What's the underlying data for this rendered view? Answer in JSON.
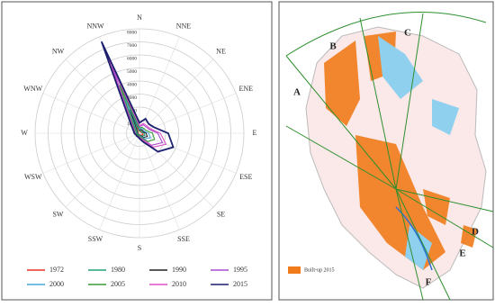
{
  "chart_data": {
    "type": "radar",
    "categories": [
      "N",
      "NNE",
      "NE",
      "ENE",
      "E",
      "ESE",
      "SE",
      "SSE",
      "S",
      "SSW",
      "SW",
      "WSW",
      "W",
      "WNW",
      "NW",
      "NNW"
    ],
    "rlim": [
      0,
      8000
    ],
    "rticks": [
      1000,
      2000,
      3000,
      4000,
      5000,
      6000,
      7000,
      8000
    ],
    "grid": true,
    "series": [
      {
        "name": "1972",
        "color": "#e8322a",
        "values": [
          150,
          150,
          150,
          150,
          250,
          300,
          200,
          150,
          120,
          100,
          100,
          100,
          100,
          120,
          150,
          800
        ]
      },
      {
        "name": "1980",
        "color": "#1fa37a",
        "values": [
          200,
          200,
          200,
          200,
          350,
          450,
          300,
          180,
          150,
          120,
          120,
          120,
          120,
          150,
          200,
          1500
        ]
      },
      {
        "name": "1990",
        "color": "#222222",
        "values": [
          250,
          300,
          300,
          300,
          500,
          650,
          450,
          220,
          180,
          150,
          150,
          150,
          150,
          200,
          300,
          2000
        ]
      },
      {
        "name": "1995",
        "color": "#a64bd0",
        "values": [
          500,
          700,
          700,
          800,
          1400,
          1900,
          1300,
          450,
          280,
          250,
          250,
          250,
          300,
          400,
          650,
          5500
        ]
      },
      {
        "name": "2000",
        "color": "#4aa6dc",
        "values": [
          300,
          400,
          400,
          400,
          700,
          900,
          600,
          280,
          200,
          180,
          180,
          180,
          200,
          250,
          400,
          3000
        ]
      },
      {
        "name": "2005",
        "color": "#3c9a3c",
        "values": [
          400,
          500,
          500,
          550,
          1000,
          1250,
          900,
          350,
          250,
          200,
          200,
          200,
          250,
          300,
          500,
          4000
        ]
      },
      {
        "name": "2010",
        "color": "#e052c8",
        "values": [
          600,
          800,
          800,
          900,
          1600,
          2200,
          1500,
          500,
          320,
          280,
          280,
          280,
          330,
          450,
          750,
          6800
        ]
      },
      {
        "name": "2015",
        "color": "#1b1f6e",
        "values": [
          800,
          1200,
          1000,
          1200,
          2200,
          2800,
          2000,
          700,
          400,
          300,
          300,
          300,
          400,
          500,
          900,
          7600
        ]
      }
    ]
  },
  "map": {
    "labels": [
      "A",
      "B",
      "C",
      "D",
      "E",
      "F"
    ],
    "legend": "Built-up 2015"
  }
}
